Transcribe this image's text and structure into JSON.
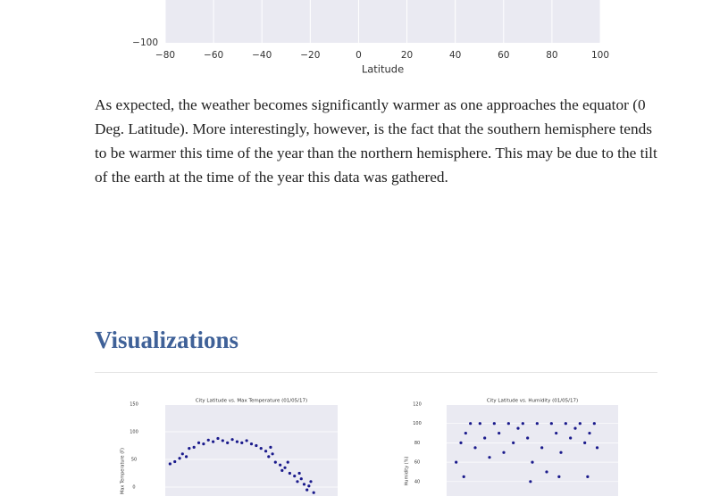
{
  "top_chart": {
    "type": "scatter",
    "xlabel": "Latitude",
    "xlim": [
      -80,
      100
    ],
    "ylim": [
      -100,
      150
    ],
    "xticks": [
      {
        "value": -80,
        "label": "−80"
      },
      {
        "value": -60,
        "label": "−60"
      },
      {
        "value": -40,
        "label": "−40"
      },
      {
        "value": -20,
        "label": "−20"
      },
      0,
      20,
      40,
      60,
      80,
      100
    ],
    "yticks": [
      {
        "value": -100,
        "label": "−100"
      }
    ]
  },
  "paragraph": "As expected, the weather becomes significantly warmer as one approaches the equator (0 Deg. Latitude). More interestingly, however, is the fact that the southern hemisphere tends to be warmer this time of the year than the northern hemisphere. This may be due to the tilt of the earth at the time of the year this data was gathered.",
  "section": {
    "heading": "Visualizations"
  },
  "charts": [
    {
      "type": "scatter",
      "title": "City Latitude vs. Max Temperature (01/05/17)",
      "ylabel": "Max Temperature (F)",
      "color": "#1a1a8c",
      "xlim": [
        -80,
        100
      ],
      "ylim": [
        -20,
        150
      ],
      "yticks": [
        150,
        100,
        50,
        0
      ],
      "x": [
        -75,
        -70,
        -65,
        -62,
        -58,
        -55,
        -50,
        -45,
        -40,
        -35,
        -30,
        -25,
        -20,
        -15,
        -10,
        -5,
        0,
        5,
        10,
        15,
        20,
        25,
        28,
        32,
        35,
        40,
        42,
        45,
        50,
        55,
        58,
        62,
        65,
        68,
        70,
        72,
        75,
        60,
        48,
        30
      ],
      "y": [
        42,
        46,
        52,
        60,
        55,
        70,
        72,
        80,
        78,
        85,
        82,
        88,
        84,
        80,
        86,
        82,
        80,
        84,
        78,
        75,
        70,
        65,
        55,
        60,
        45,
        40,
        30,
        35,
        25,
        20,
        10,
        15,
        5,
        -5,
        2,
        10,
        -10,
        25,
        45,
        72
      ]
    },
    {
      "type": "scatter",
      "title": "City Latitude vs. Humidity (01/05/17)",
      "ylabel": "Humidity (%)",
      "color": "#1a1a8c",
      "xlim": [
        -80,
        100
      ],
      "ylim": [
        20,
        120
      ],
      "yticks": [
        120,
        100,
        80,
        60,
        40
      ],
      "x": [
        -70,
        -65,
        -60,
        -55,
        -50,
        -45,
        -40,
        -35,
        -30,
        -25,
        -20,
        -15,
        -10,
        -5,
        0,
        5,
        10,
        15,
        20,
        25,
        30,
        35,
        40,
        45,
        50,
        55,
        60,
        65,
        70,
        75,
        78,
        -62,
        8,
        38,
        68
      ],
      "y": [
        60,
        80,
        90,
        100,
        75,
        100,
        85,
        65,
        100,
        90,
        70,
        100,
        80,
        95,
        100,
        85,
        60,
        100,
        75,
        50,
        100,
        90,
        70,
        100,
        85,
        95,
        100,
        80,
        90,
        100,
        75,
        45,
        40,
        45,
        45
      ]
    }
  ]
}
